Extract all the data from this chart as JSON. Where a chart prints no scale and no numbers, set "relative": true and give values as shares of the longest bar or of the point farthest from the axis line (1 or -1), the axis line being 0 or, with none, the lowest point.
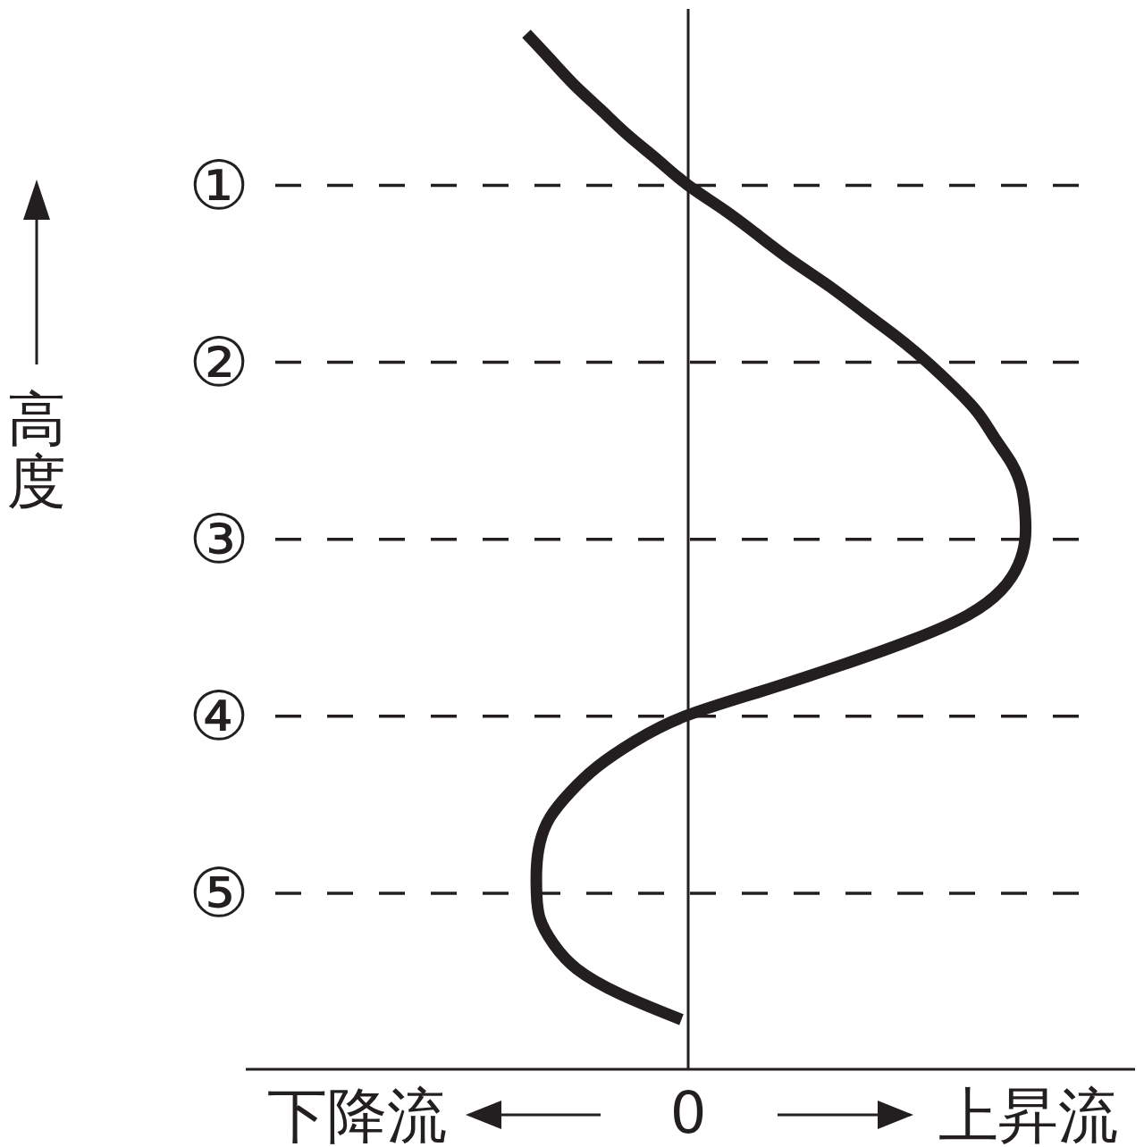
{
  "chart_data": {
    "type": "line",
    "orientation": "horizontal",
    "relative": true,
    "ylabel": "高度",
    "categories": [
      null,
      null,
      null,
      null,
      null,
      null,
      "①",
      null,
      null,
      null,
      null,
      null,
      null,
      "②",
      null,
      null,
      null,
      null,
      null,
      null,
      "③",
      null,
      null,
      null,
      null,
      null,
      null,
      "④",
      null,
      null,
      null,
      null,
      null,
      null,
      "⑤",
      null,
      null,
      null,
      null,
      null
    ],
    "values": [
      -0.48,
      -0.41,
      -0.34,
      -0.26,
      -0.18,
      -0.09,
      0,
      0.11,
      0.21,
      0.31,
      0.42,
      0.52,
      0.62,
      0.71,
      0.79,
      0.86,
      0.91,
      0.96,
      0.99,
      1.0,
      1.0,
      0.98,
      0.93,
      0.83,
      0.66,
      0.45,
      0.22,
      -0.01,
      -0.16,
      -0.27,
      -0.35,
      -0.41,
      -0.44,
      -0.45,
      -0.45,
      -0.44,
      -0.4,
      -0.33,
      -0.2,
      -0.02
    ],
    "color": "#231f20",
    "grid": "y",
    "ref_lines": [
      {
        "axis": "x",
        "value": 0,
        "label": "0"
      }
    ],
    "annotations": [
      "下降流",
      "上昇流"
    ]
  }
}
